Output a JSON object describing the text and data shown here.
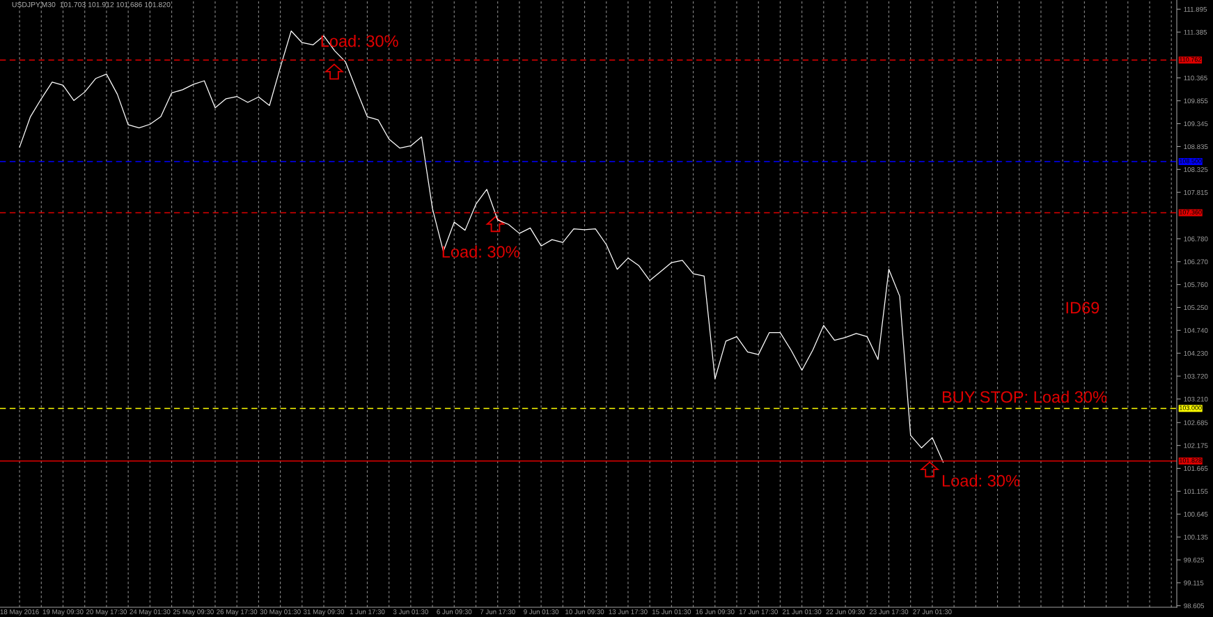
{
  "chart_data": {
    "type": "line",
    "title": "USDJPY,M30  101.703 101.912 101.686 101.820",
    "categories": [
      "18 May 2016",
      null,
      null,
      null,
      "19 May 09:30",
      null,
      null,
      null,
      "20 May 17:30",
      null,
      null,
      null,
      "24 May 01:30",
      null,
      null,
      null,
      "25 May 09:30",
      null,
      null,
      null,
      "26 May 17:30",
      null,
      null,
      null,
      "30 May 01:30",
      null,
      null,
      null,
      "31 May 09:30",
      null,
      null,
      null,
      "1 Jun 17:30",
      null,
      null,
      null,
      "3 Jun 01:30",
      null,
      null,
      null,
      "6 Jun 09:30",
      null,
      null,
      null,
      "7 Jun 17:30",
      null,
      null,
      null,
      "9 Jun 01:30",
      null,
      null,
      null,
      "10 Jun 09:30",
      null,
      null,
      null,
      "13 Jun 17:30",
      null,
      null,
      null,
      "15 Jun 01:30",
      null,
      null,
      null,
      "16 Jun 09:30",
      null,
      null,
      null,
      "17 Jun 17:30",
      null,
      null,
      null,
      "21 Jun 01:30",
      null,
      null,
      null,
      "22 Jun 09:30",
      null,
      null,
      null,
      "23 Jun 17:30",
      null,
      null,
      null,
      "27 Jun 01:30",
      null,
      null,
      null,
      null,
      null,
      null,
      null,
      null,
      null,
      null,
      null,
      null,
      null,
      null,
      null,
      null,
      null,
      null,
      null,
      null,
      null,
      null
    ],
    "series": [
      {
        "color": "#ffffff",
        "values": [
          108.82,
          109.5,
          109.9,
          110.27,
          110.2,
          109.86,
          110.05,
          110.35,
          110.45,
          110.0,
          109.32,
          109.25,
          109.33,
          109.5,
          110.03,
          110.1,
          110.22,
          110.3,
          109.7,
          109.9,
          109.95,
          109.82,
          109.94,
          109.75,
          110.6,
          111.41,
          111.15,
          111.1,
          111.3,
          110.97,
          110.72,
          110.1,
          109.5,
          109.43,
          109.0,
          108.8,
          108.85,
          109.05,
          107.45,
          106.5,
          107.15,
          106.97,
          107.55,
          107.88,
          107.2,
          107.1,
          106.9,
          107.02,
          106.62,
          106.76,
          106.7,
          107.0,
          106.98,
          107.0,
          106.65,
          106.1,
          106.35,
          106.18,
          105.85,
          106.05,
          106.25,
          106.3,
          106.0,
          105.95,
          103.66,
          104.5,
          104.6,
          104.26,
          104.2,
          104.69,
          104.69,
          104.3,
          103.85,
          104.3,
          104.85,
          104.52,
          104.58,
          104.67,
          104.6,
          104.09,
          106.1,
          105.5,
          102.4,
          102.12,
          102.35,
          101.8,
          null,
          null,
          null,
          null,
          null,
          null,
          null,
          null,
          null,
          null,
          null,
          null,
          null,
          null,
          null,
          null,
          null,
          null,
          null,
          null,
          null
        ]
      }
    ],
    "ylim": [
      98.57,
      112.1
    ],
    "yticks": [
      {
        "value": 98.605,
        "label": "98.605"
      },
      {
        "value": 99.115,
        "label": "99.115"
      },
      {
        "value": 99.625,
        "label": "99.625"
      },
      {
        "value": 100.135,
        "label": "100.135"
      },
      {
        "value": 100.645,
        "label": "100.645"
      },
      {
        "value": 101.155,
        "label": "101.155"
      },
      {
        "value": 101.665,
        "label": "101.665"
      },
      {
        "value": 102.175,
        "label": "102.175"
      },
      {
        "value": 102.685,
        "label": "102.685"
      },
      {
        "value": 103.21,
        "label": "103.210"
      },
      {
        "value": 103.72,
        "label": "103.720"
      },
      {
        "value": 104.23,
        "label": "104.230"
      },
      {
        "value": 104.74,
        "label": "104.740"
      },
      {
        "value": 105.25,
        "label": "105.250"
      },
      {
        "value": 105.76,
        "label": "105.760"
      },
      {
        "value": 106.27,
        "label": "106.270"
      },
      {
        "value": 106.78,
        "label": "106.780"
      },
      {
        "value": 107.815,
        "label": "107.815"
      },
      {
        "value": 108.325,
        "label": "108.325"
      },
      {
        "value": 108.835,
        "label": "108.835"
      },
      {
        "value": 109.345,
        "label": "109.345"
      },
      {
        "value": 109.855,
        "label": "109.855"
      },
      {
        "value": 110.365,
        "label": "110.365"
      },
      {
        "value": 111.385,
        "label": "111.385"
      },
      {
        "value": 111.895,
        "label": "111.895"
      }
    ],
    "ref_lines": [
      {
        "axis": "y",
        "value": 110.762,
        "label": "110.762",
        "color": "#e00000",
        "line_style": "dashed"
      },
      {
        "axis": "y",
        "value": 108.5,
        "label": "108.500",
        "color": "#0000ff",
        "line_style": "dashed"
      },
      {
        "axis": "y",
        "value": 107.36,
        "label": "107.360",
        "color": "#e00000",
        "line_style": "dashed"
      },
      {
        "axis": "y",
        "value": 103.0,
        "label": "103.000",
        "color": "#ffff00",
        "line_style": "dashed"
      },
      {
        "axis": "y",
        "value": 101.828,
        "label": "101.828",
        "color": "#e00000",
        "line_style": "solid"
      }
    ],
    "annotations": [
      "Load: 30%",
      "Load: 30%",
      "Load: 30%",
      "BUY STOP: Load 30%",
      "ID69"
    ],
    "grid": "x",
    "marker": "none",
    "line_style": "solid"
  }
}
